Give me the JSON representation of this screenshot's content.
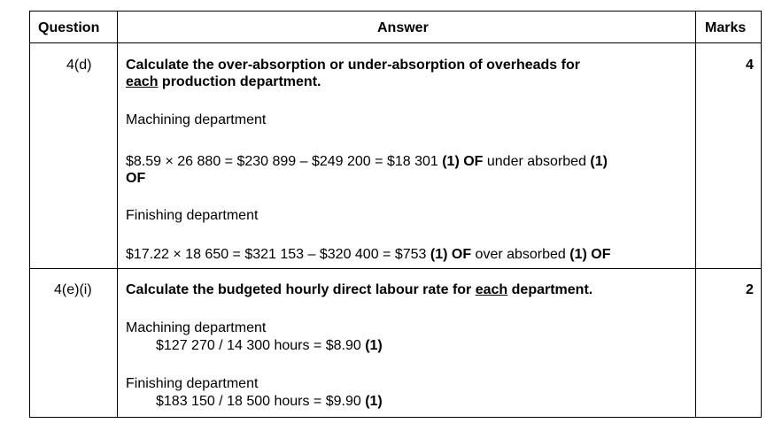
{
  "header": {
    "question": "Question",
    "answer": "Answer",
    "marks": "Marks"
  },
  "rows": [
    {
      "question": "4(d)",
      "marks": "4",
      "title_a": "Calculate the over-absorption or under-absorption of overheads for",
      "title_u": "each",
      "title_b": " production department.",
      "dept1": "Machining department",
      "calc1_a": "$8.59 × 26 880 = $230 899 – $249 200 = $18 301 ",
      "calc1_m1": "(1) OF",
      "calc1_b": " under absorbed ",
      "calc1_m2": "(1)",
      "calc1_m3": "OF",
      "dept2": "Finishing department",
      "calc2_a": "$17.22 × 18 650 = $321 153 – $320 400 = $753 ",
      "calc2_m1": "(1) OF",
      "calc2_b": " over absorbed ",
      "calc2_m2": "(1) OF"
    },
    {
      "question": "4(e)(i)",
      "marks": "2",
      "title_a": "Calculate the budgeted hourly direct labour rate for ",
      "title_u": "each",
      "title_b": " department.",
      "dept1": "Machining department",
      "calc1_a": "$127 270 / 14 300 hours = $8.90 ",
      "calc1_m": "(1)",
      "dept2": "Finishing department",
      "calc2_a": "$183 150 / 18 500 hours = $9.90 ",
      "calc2_m": "(1)"
    }
  ]
}
